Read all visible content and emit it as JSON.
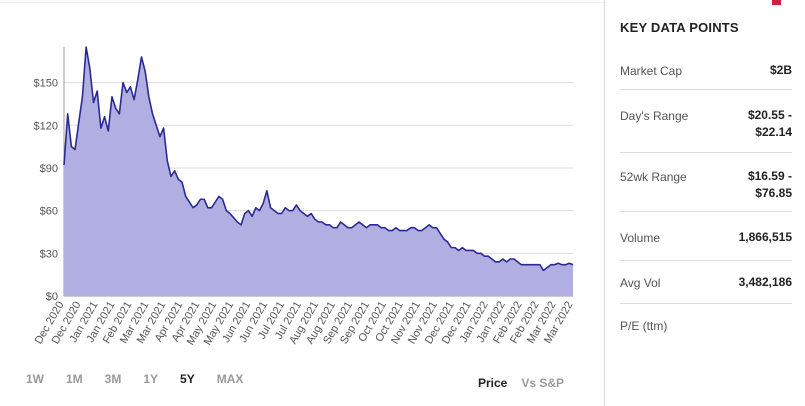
{
  "chart_data": {
    "type": "area",
    "ylabel": "",
    "xlabel": "",
    "ylim": [
      0,
      175
    ],
    "ytick_values": [
      0,
      30,
      60,
      90,
      120,
      150
    ],
    "ytick_labels": [
      "$0",
      "$30",
      "$60",
      "$90",
      "$120",
      "$150"
    ],
    "xtick_labels": [
      "Dec 2020",
      "Dec 2020",
      "Jan 2021",
      "Jan 2021",
      "Feb 2021",
      "Mar 2021",
      "Mar 2021",
      "Apr 2021",
      "Apr 2021",
      "May 2021",
      "May 2021",
      "Jun 2021",
      "Jun 2021",
      "Jul 2021",
      "Jul 2021",
      "Aug 2021",
      "Aug 2021",
      "Sep 2021",
      "Sep 2021",
      "Oct 2021",
      "Oct 2021",
      "Nov 2021",
      "Nov 2021",
      "Dec 2021",
      "Dec 2021",
      "Jan 2022",
      "Jan 2022",
      "Feb 2022",
      "Feb 2022",
      "Mar 2022",
      "Mar 2022"
    ],
    "grid": "horizontal",
    "series": [
      {
        "fill": "#b1afe1",
        "line": "#2b2a92",
        "values": [
          92,
          128,
          105,
          103,
          122,
          140,
          175,
          160,
          136,
          144,
          118,
          126,
          116,
          140,
          132,
          128,
          150,
          143,
          147,
          138,
          152,
          168,
          158,
          140,
          128,
          120,
          112,
          118,
          95,
          84,
          88,
          82,
          80,
          70,
          66,
          62,
          64,
          68,
          68,
          62,
          62,
          66,
          70,
          68,
          60,
          58,
          55,
          52,
          50,
          58,
          60,
          56,
          62,
          60,
          65,
          74,
          62,
          60,
          58,
          58,
          62,
          60,
          60,
          64,
          60,
          58,
          56,
          58,
          54,
          52,
          52,
          50,
          50,
          48,
          48,
          52,
          50,
          48,
          48,
          50,
          52,
          50,
          48,
          50,
          50,
          50,
          48,
          48,
          46,
          46,
          48,
          46,
          46,
          46,
          48,
          48,
          46,
          46,
          48,
          50,
          48,
          48,
          44,
          40,
          38,
          34,
          34,
          32,
          34,
          32,
          32,
          32,
          30,
          30,
          28,
          28,
          26,
          24,
          24,
          26,
          24,
          26,
          26,
          24,
          22,
          22,
          22,
          22,
          22,
          22,
          18,
          20,
          22,
          22,
          23,
          22,
          22,
          23,
          22
        ]
      }
    ]
  },
  "range_buttons": [
    {
      "label": "1W"
    },
    {
      "label": "1M"
    },
    {
      "label": "3M"
    },
    {
      "label": "1Y"
    },
    {
      "label": "5Y",
      "active": true
    },
    {
      "label": "MAX"
    }
  ],
  "modes": [
    {
      "label": "Price",
      "active": true
    },
    {
      "label": "Vs S&P"
    }
  ],
  "key_data": {
    "title": "KEY DATA POINTS",
    "market_cap": {
      "label": "Market Cap",
      "value": "$2B"
    },
    "days_range": {
      "label": "Day's Range",
      "value_line1": "$20.55 -",
      "value_line2": "$22.14"
    },
    "wk52_range": {
      "label": "52wk Range",
      "value_line1": "$16.59 -",
      "value_line2": "$76.85"
    },
    "volume": {
      "label": "Volume",
      "value": "1,866,515"
    },
    "avg_vol": {
      "label": "Avg Vol",
      "value": "3,482,186"
    },
    "pe": {
      "label": "P/E (ttm)",
      "value": ""
    }
  },
  "colors": {
    "accent": "#d21f3c",
    "area_fill": "#b1afe1",
    "area_line": "#2b2a92"
  }
}
